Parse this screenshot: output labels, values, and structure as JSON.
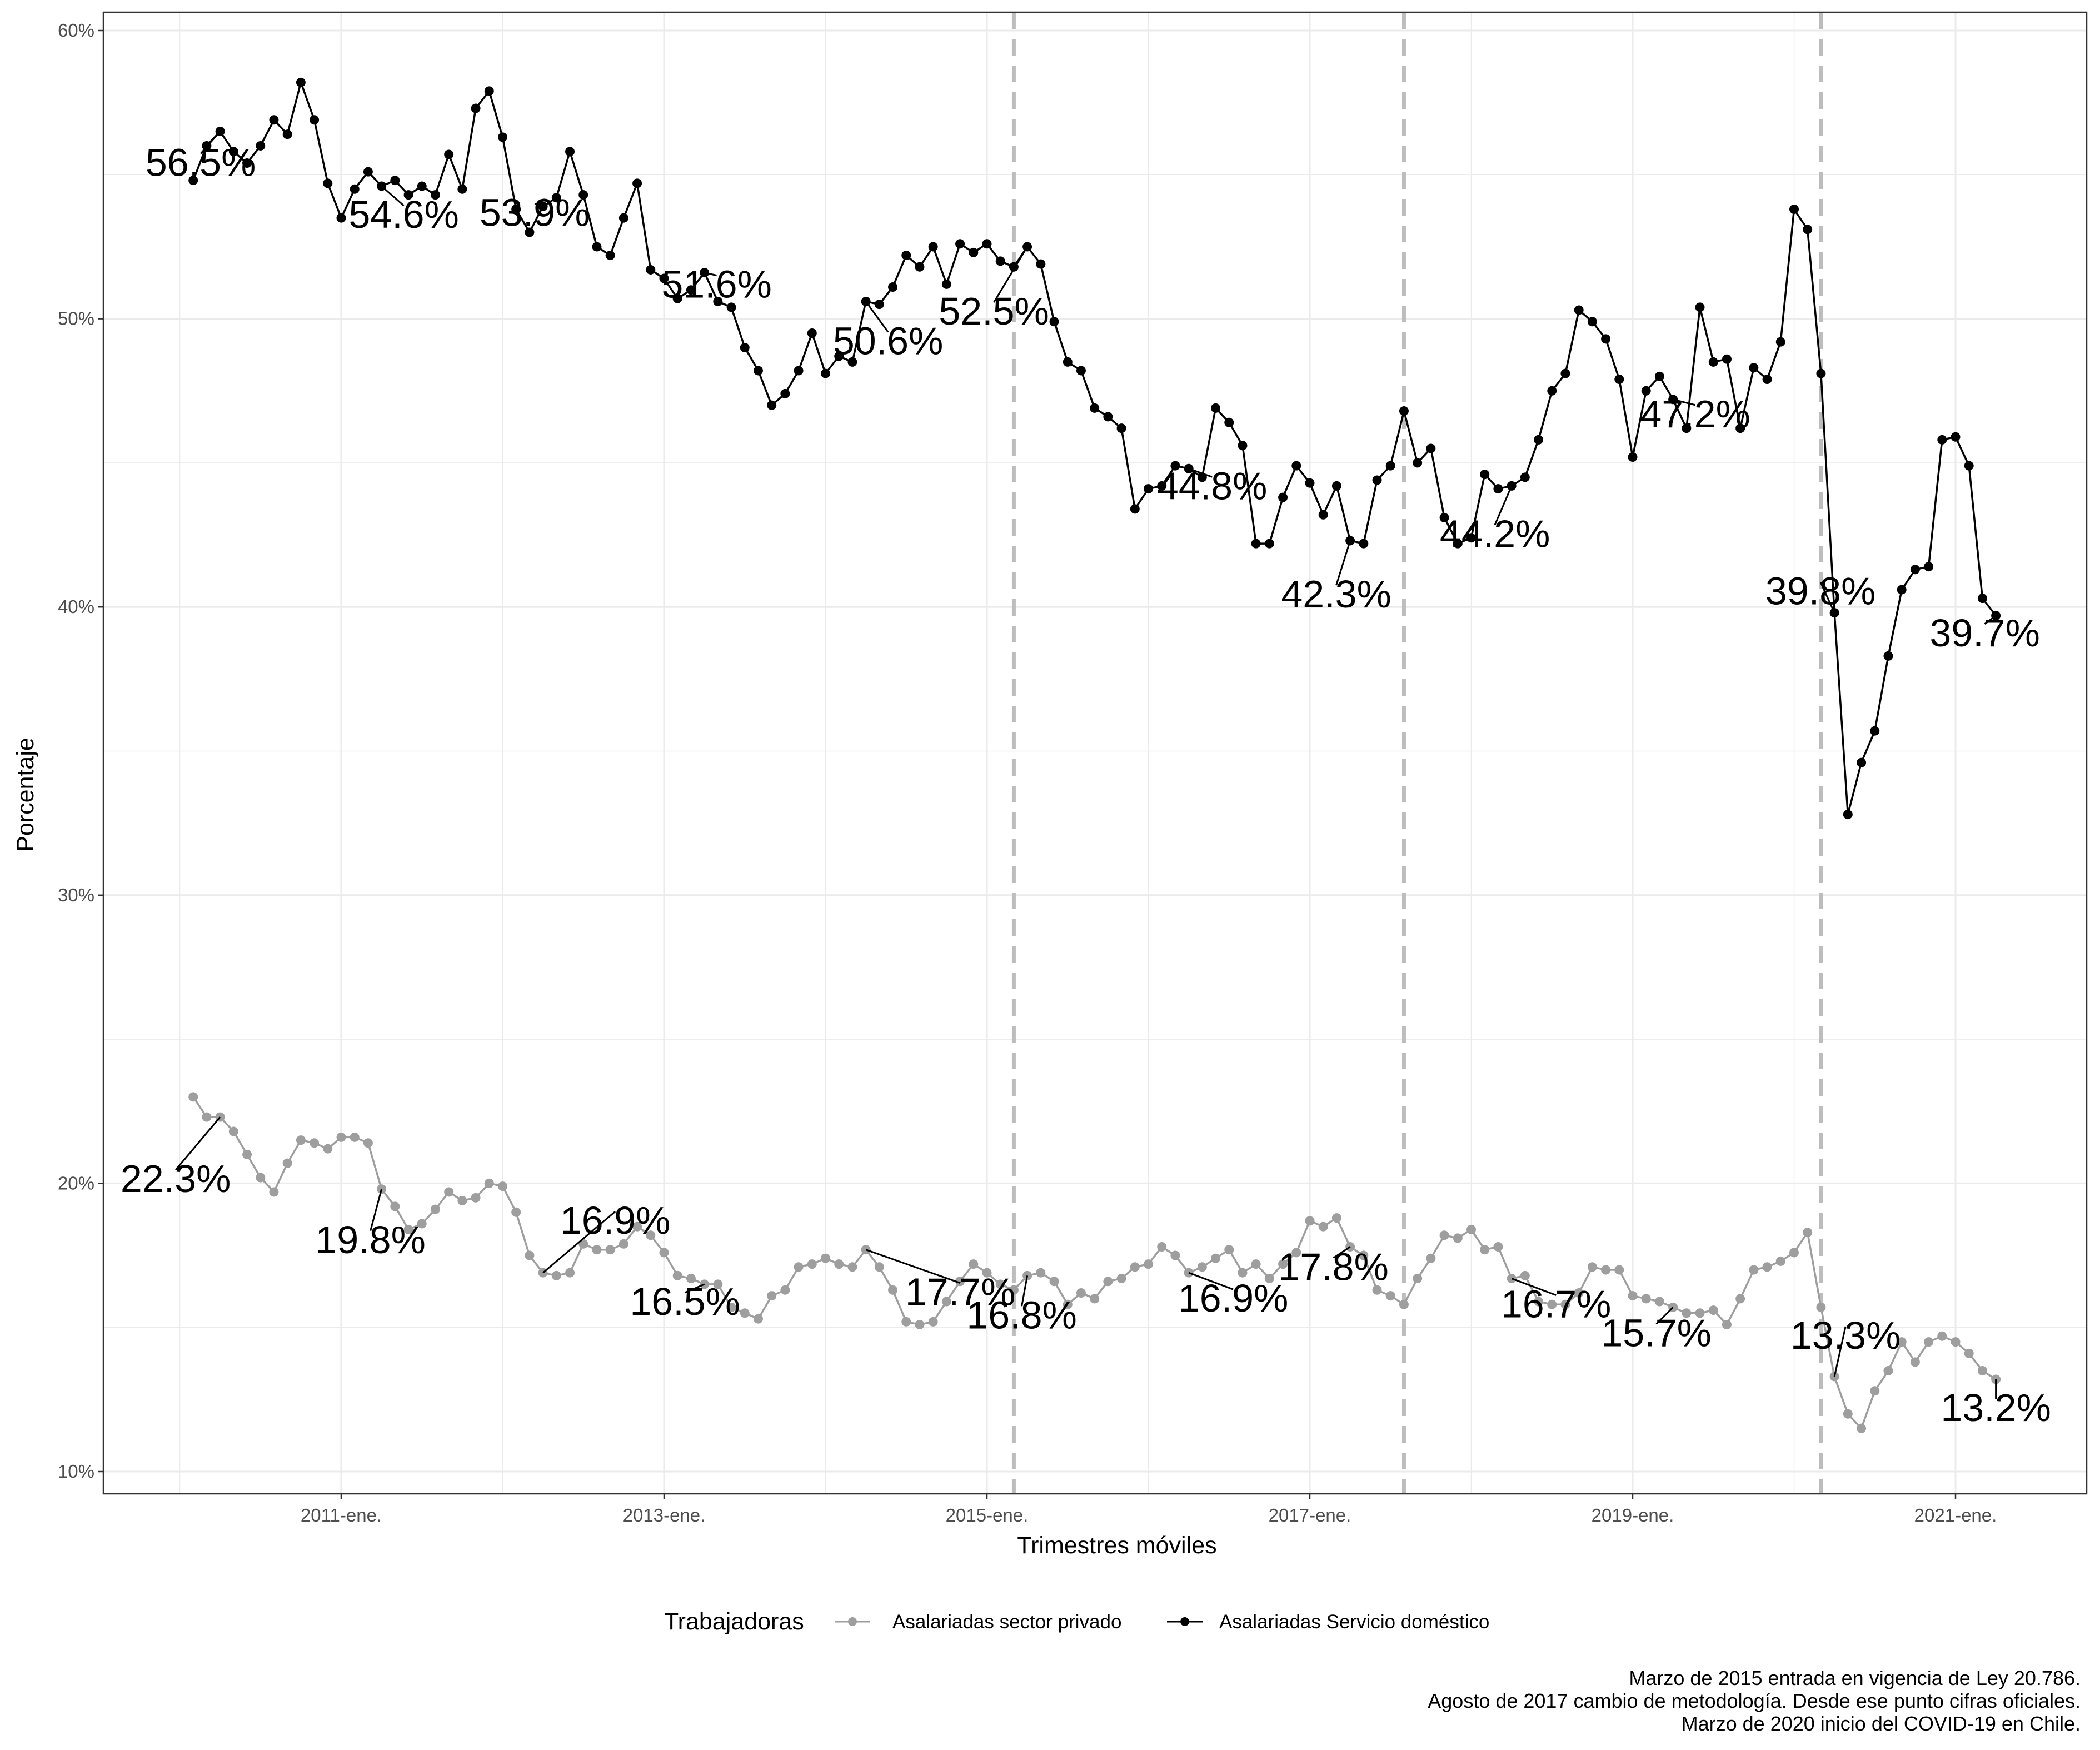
{
  "chart_data": {
    "type": "line",
    "xlabel": "Trimestres móviles",
    "ylabel": "Porcentaje",
    "ylim": [
      10,
      60
    ],
    "y_ticks": [
      "10%",
      "20%",
      "30%",
      "40%",
      "50%",
      "60%"
    ],
    "y_tick_values": [
      10,
      20,
      30,
      40,
      50,
      60
    ],
    "x_ticks": [
      "2011-ene.",
      "2013-ene.",
      "2015-ene.",
      "2017-ene.",
      "2019-ene.",
      "2021-ene."
    ],
    "x_start": "2010-feb.",
    "grid": true,
    "legend": {
      "title": "Trabajadoras",
      "position": "bottom",
      "entries": [
        "Asalariadas sector privado",
        "Asalariadas Servicio doméstico"
      ]
    },
    "reference_lines": [
      "2015-mar.",
      "2017-ago.",
      "2020-mar."
    ],
    "series": [
      {
        "name": "Asalariadas sector privado",
        "color": "#9e9e9e",
        "values": [
          23.0,
          22.3,
          22.3,
          21.8,
          21.0,
          20.2,
          19.7,
          20.7,
          21.5,
          21.4,
          21.2,
          21.6,
          21.6,
          21.4,
          19.8,
          19.2,
          18.4,
          18.6,
          19.1,
          19.7,
          19.4,
          19.5,
          20.0,
          19.9,
          19.0,
          17.5,
          16.9,
          16.8,
          16.9,
          17.9,
          17.7,
          17.7,
          17.9,
          18.5,
          18.2,
          17.6,
          16.8,
          16.7,
          16.5,
          16.5,
          15.7,
          15.5,
          15.3,
          16.1,
          16.3,
          17.1,
          17.2,
          17.4,
          17.2,
          17.1,
          17.7,
          17.1,
          16.3,
          15.2,
          15.1,
          15.2,
          15.9,
          16.6,
          17.2,
          16.9,
          16.5,
          16.3,
          16.8,
          16.9,
          16.6,
          15.8,
          16.2,
          16.0,
          16.6,
          16.7,
          17.1,
          17.2,
          17.8,
          17.5,
          16.9,
          17.1,
          17.4,
          17.7,
          16.9,
          17.2,
          16.7,
          17.2,
          17.6,
          18.7,
          18.5,
          18.8,
          17.8,
          17.5,
          16.3,
          16.1,
          15.8,
          16.7,
          17.4,
          18.2,
          18.1,
          18.4,
          17.7,
          17.8,
          16.7,
          16.8,
          15.9,
          15.8,
          15.8,
          16.2,
          17.1,
          17.0,
          17.0,
          16.1,
          16.0,
          15.9,
          15.7,
          15.5,
          15.5,
          15.6,
          15.1,
          16.0,
          17.0,
          17.1,
          17.3,
          17.6,
          18.3,
          15.7,
          13.3,
          12.0,
          11.5,
          12.8,
          13.5,
          14.5,
          13.8,
          14.5,
          14.7,
          14.5,
          14.1,
          13.5,
          13.2
        ]
      },
      {
        "name": "Asalariadas Servicio doméstico",
        "color": "#000000",
        "values": [
          54.8,
          56.0,
          56.5,
          55.8,
          55.4,
          56.0,
          56.9,
          56.4,
          58.2,
          56.9,
          54.7,
          53.5,
          54.5,
          55.1,
          54.6,
          54.8,
          54.3,
          54.6,
          54.3,
          55.7,
          54.5,
          57.3,
          57.9,
          56.3,
          53.8,
          53.0,
          53.9,
          54.2,
          55.8,
          54.3,
          52.5,
          52.2,
          53.5,
          54.7,
          51.7,
          51.4,
          50.7,
          51.0,
          51.6,
          50.6,
          50.4,
          49.0,
          48.2,
          47.0,
          47.4,
          48.2,
          49.5,
          48.1,
          48.7,
          48.5,
          50.6,
          50.5,
          51.1,
          52.2,
          51.8,
          52.5,
          51.2,
          52.6,
          52.3,
          52.6,
          52.0,
          51.8,
          52.5,
          51.9,
          49.9,
          48.5,
          48.2,
          46.9,
          46.6,
          46.2,
          43.4,
          44.1,
          44.2,
          44.9,
          44.8,
          44.5,
          46.9,
          46.4,
          45.6,
          42.2,
          42.2,
          43.8,
          44.9,
          44.3,
          43.2,
          44.2,
          42.3,
          42.2,
          44.4,
          44.9,
          46.8,
          45.0,
          45.5,
          43.1,
          42.2,
          42.4,
          44.6,
          44.1,
          44.2,
          44.5,
          45.8,
          47.5,
          48.1,
          50.3,
          49.9,
          49.3,
          47.9,
          45.2,
          47.5,
          48.0,
          47.2,
          46.2,
          50.4,
          48.5,
          48.6,
          46.2,
          48.3,
          47.9,
          49.2,
          53.8,
          53.1,
          48.1,
          39.8,
          32.8,
          34.6,
          35.7,
          38.3,
          40.6,
          41.3,
          41.4,
          45.8,
          45.9,
          44.9,
          40.3,
          39.7
        ]
      }
    ],
    "annotations": [
      {
        "series": 1,
        "index": 2,
        "text": "56.5%"
      },
      {
        "series": 1,
        "index": 14,
        "text": "54.6%"
      },
      {
        "series": 1,
        "index": 26,
        "text": "53.9%"
      },
      {
        "series": 1,
        "index": 38,
        "text": "51.6%"
      },
      {
        "series": 1,
        "index": 50,
        "text": "50.6%"
      },
      {
        "series": 1,
        "index": 62,
        "text": "52.5%"
      },
      {
        "series": 1,
        "index": 74,
        "text": "44.8%"
      },
      {
        "series": 1,
        "index": 86,
        "text": "42.3%"
      },
      {
        "series": 1,
        "index": 98,
        "text": "44.2%"
      },
      {
        "series": 1,
        "index": 110,
        "text": "47.2%"
      },
      {
        "series": 1,
        "index": 122,
        "text": "39.8%"
      },
      {
        "series": 1,
        "index": 134,
        "text": "39.7%"
      },
      {
        "series": 0,
        "index": 2,
        "text": "22.3%"
      },
      {
        "series": 0,
        "index": 14,
        "text": "19.8%"
      },
      {
        "series": 0,
        "index": 26,
        "text": "16.9%"
      },
      {
        "series": 0,
        "index": 38,
        "text": "16.5%"
      },
      {
        "series": 0,
        "index": 50,
        "text": "17.7%"
      },
      {
        "series": 0,
        "index": 62,
        "text": "16.8%"
      },
      {
        "series": 0,
        "index": 74,
        "text": "16.9%"
      },
      {
        "series": 0,
        "index": 86,
        "text": "17.8%"
      },
      {
        "series": 0,
        "index": 98,
        "text": "16.7%"
      },
      {
        "series": 0,
        "index": 110,
        "text": "15.7%"
      },
      {
        "series": 0,
        "index": 122,
        "text": "13.3%"
      },
      {
        "series": 0,
        "index": 134,
        "text": "13.2%"
      }
    ]
  },
  "caption": [
    "Marzo de 2015 entrada en vigencia de Ley 20.786.",
    "Agosto de 2017 cambio de metodología. Desde ese punto cifras oficiales.",
    "Marzo de 2020 inicio del COVID-19 en Chile."
  ],
  "colors": {
    "grid": "#ebebeb",
    "reference_line": "#bdbdbd",
    "panel_border": "#333333"
  }
}
